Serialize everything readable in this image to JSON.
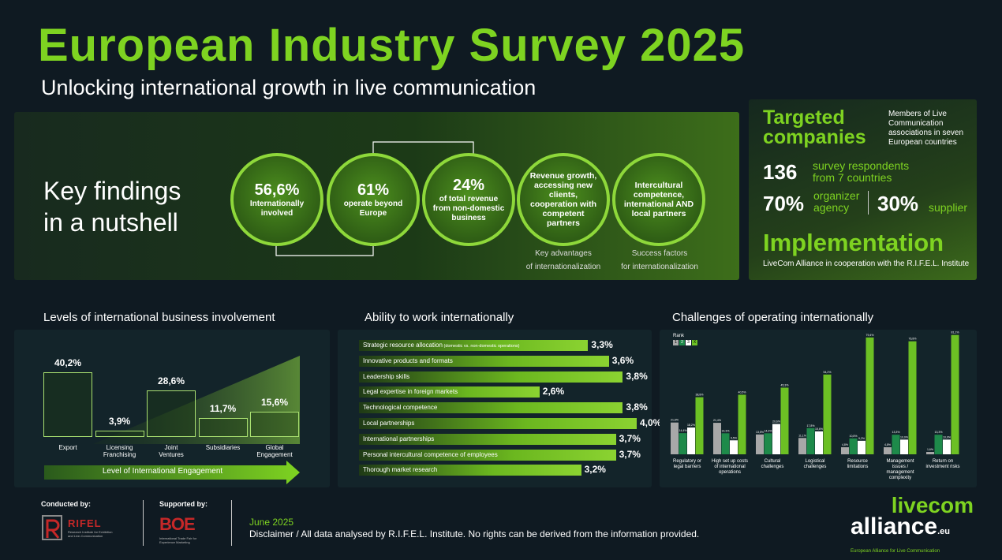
{
  "header": {
    "title": "European Industry Survey 2025",
    "subtitle": "Unlocking international growth in live communication"
  },
  "key_findings": {
    "heading_line1": "Key findings",
    "heading_line2": "in a nutshell",
    "circles": [
      {
        "value": "56,6%",
        "text": "Internationally involved"
      },
      {
        "value": "61%",
        "text": "operate beyond Europe"
      },
      {
        "value": "24%",
        "text": "of total revenue from non-domestic business"
      },
      {
        "value": "",
        "text": "Revenue growth, accessing new clients, cooperation with competent partners"
      },
      {
        "value": "",
        "text": "Intercultural competence, international AND local partners"
      }
    ],
    "caption_advantages_1": "Key advantages",
    "caption_advantages_2": "of internationalization",
    "caption_success_1": "Success factors",
    "caption_success_2": "for internationalization"
  },
  "targeted": {
    "heading_line1": "Targeted",
    "heading_line2": "companies",
    "members_text": "Members of Live Communication associations in seven European countries",
    "respondents_num": "136",
    "respondents_text_1": "survey respondents",
    "respondents_text_2": "from 7 countries",
    "organizer_pct": "70%",
    "organizer_text_1": "organizer",
    "organizer_text_2": "agency",
    "supplier_pct": "30%",
    "supplier_text": "supplier",
    "implementation": "Implementation",
    "implementation_text": "LiveCom Alliance in cooperation with the R.I.F.E.L. Institute"
  },
  "levels": {
    "title": "Levels of international business involvement",
    "arrow_label": "Level of International Engagement",
    "chart_data": {
      "type": "bar",
      "categories": [
        "Export",
        "Licensing Franchising",
        "Joint Ventures",
        "Subsidiaries",
        "Global Engagement"
      ],
      "values": [
        40.2,
        3.9,
        28.6,
        11.7,
        15.6
      ],
      "value_labels": [
        "40,2%",
        "3,9%",
        "28,6%",
        "11,7%",
        "15,6%"
      ],
      "category_lines": [
        [
          "Export"
        ],
        [
          "Licensing",
          "Franchising"
        ],
        [
          "Joint",
          "Ventures"
        ],
        [
          "Subsidiaries"
        ],
        [
          "Global",
          "Engagement"
        ]
      ],
      "ylim": [
        0,
        42
      ]
    }
  },
  "ability": {
    "title": "Ability to work internationally",
    "chart_data": {
      "type": "bar",
      "orientation": "horizontal",
      "categories": [
        "Strategic resource allocation",
        "Innovative products and formats",
        "Leadership skills",
        "Legal expertise in foreign markets",
        "Technological competence",
        "Local partnerships",
        "International partnerships",
        "Personal intercultural competence of employees",
        "Thorough market research"
      ],
      "notes": [
        "(domestic vs. non-domestic operations)",
        "",
        "",
        "",
        "",
        "",
        "",
        "",
        ""
      ],
      "values": [
        3.3,
        3.6,
        3.8,
        2.6,
        3.8,
        4.0,
        3.7,
        3.7,
        3.2
      ],
      "value_labels": [
        "3,3%",
        "3,6%",
        "3,8%",
        "2,6%",
        "3,8%",
        "4,0%",
        "3,7%",
        "3,7%",
        "3,2%"
      ],
      "xlim": [
        0,
        4.0
      ]
    }
  },
  "challenges": {
    "title": "Challenges of operating internationally",
    "rank_label": "Rank",
    "rank_keys": [
      "1",
      "2",
      "3",
      "X"
    ],
    "colors": [
      "#a8a8a8",
      "#1e8a4a",
      "#ffffff",
      "#6cc024"
    ],
    "chart_data": {
      "type": "bar",
      "categories": [
        "Regulatory or legal barriers",
        "High set up costs of international operations",
        "Cultural challenges",
        "Logistical challenges",
        "Resource limitations",
        "Management issues / management complexity",
        "Return on investment risks"
      ],
      "category_lines": [
        [
          "Regulatory or",
          "legal barriers"
        ],
        [
          "High set up costs",
          "of international",
          "operations"
        ],
        [
          "Cultural",
          "challenges"
        ],
        [
          "Logistical",
          "challenges"
        ],
        [
          "Resource",
          "limitations"
        ],
        [
          "Management",
          "issues /",
          "management",
          "complexity"
        ],
        [
          "Return on",
          "investment risks"
        ]
      ],
      "series": [
        {
          "name": "1",
          "values": [
            21.6,
            21.4,
            13.5,
            11.1,
            4.8,
            4.8,
            1.6
          ]
        },
        {
          "name": "2",
          "values": [
            14.4,
            14.3,
            14.3,
            17.8,
            10.8,
            13.3,
            13.3
          ]
        },
        {
          "name": "3",
          "values": [
            18.2,
            9.5,
            20.6,
            15.6,
            9.2,
            10.0,
            10.0
          ]
        },
        {
          "name": "X",
          "values": [
            38.8,
            40.5,
            45.3,
            54.2,
            79.4,
            76.8,
            81.1
          ]
        }
      ],
      "ylim": [
        0,
        82
      ]
    }
  },
  "footer": {
    "conducted_by": "Conducted by:",
    "supported_by": "Supported by:",
    "rifel_name": "RIFEL",
    "rifel_sub": "Research Institute for Exhibition and Live-Communication",
    "boe_name": "BOE",
    "boe_sub": "International Trade Fair for Experience Marketing",
    "date": "June 2025",
    "disclaimer": "Disclaimer / All data analysed by R.I.F.E.L. Institute. No rights can be derived from the information provided.",
    "logo_line1": "livecom",
    "logo_line2": "alliance",
    "logo_tld": ".eu",
    "logo_tagline": "European Alliance for Live Communication"
  }
}
